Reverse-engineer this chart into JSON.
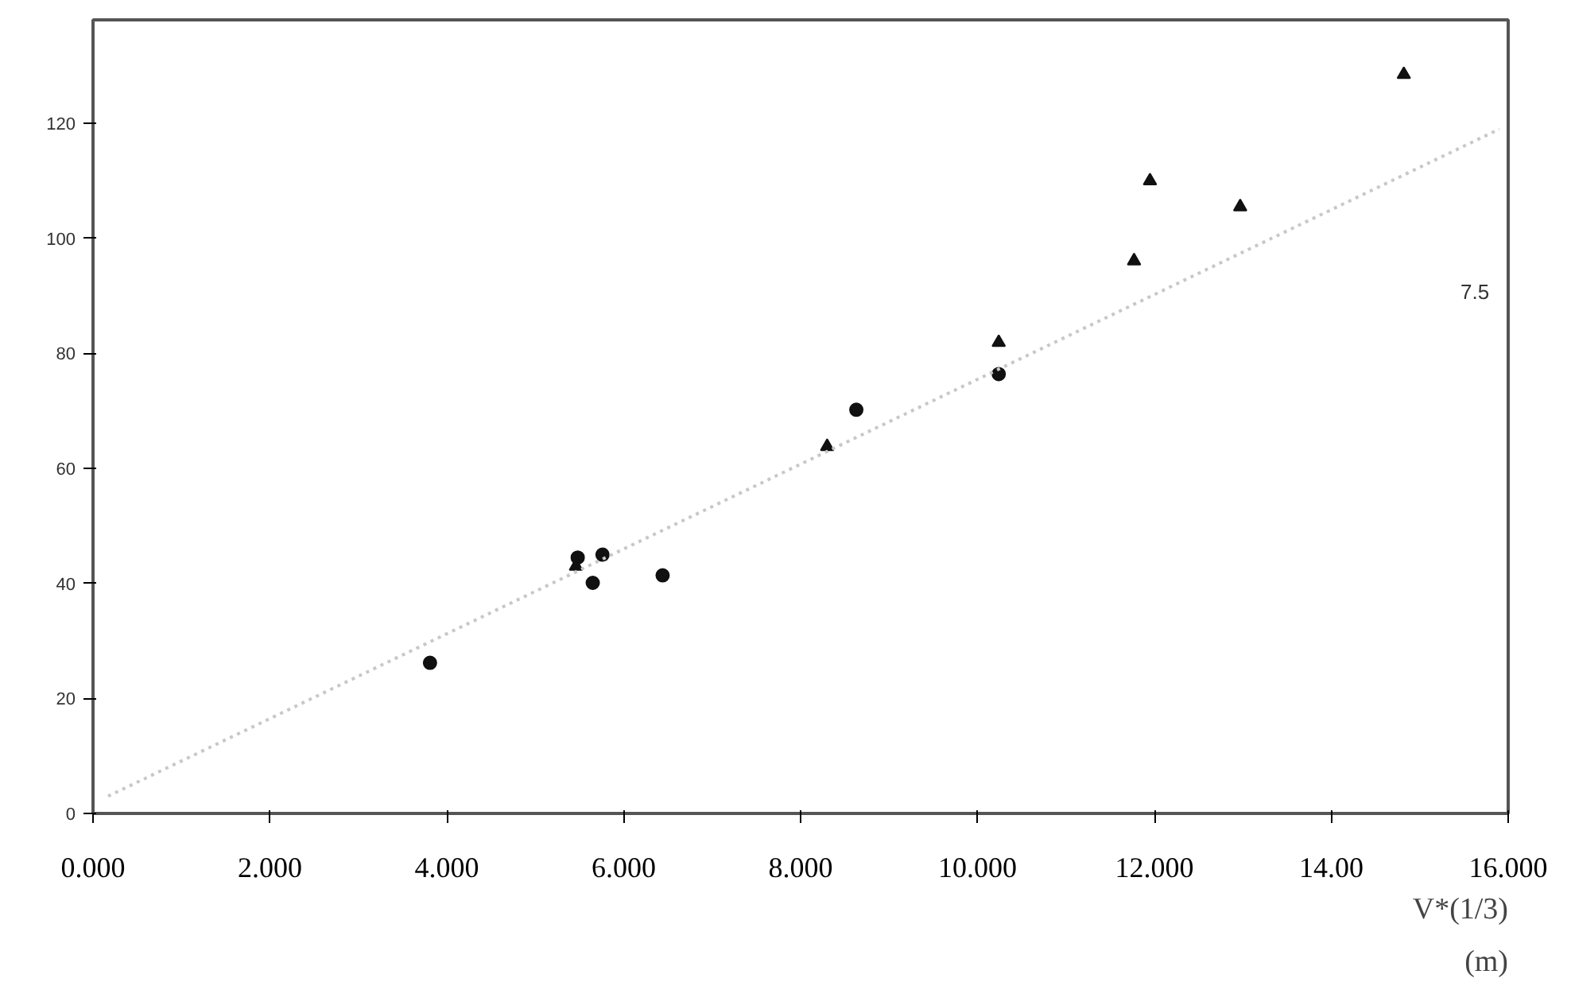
{
  "chart_data": {
    "type": "scatter",
    "xlabel": "V*(1/3) (m)",
    "xlim": [
      0,
      16
    ],
    "ylim": [
      0,
      138
    ],
    "xticks": [
      {
        "value": 0,
        "label": "0.000"
      },
      {
        "value": 2,
        "label": "2.000"
      },
      {
        "value": 4,
        "label": "4.000"
      },
      {
        "value": 6,
        "label": "6.000"
      },
      {
        "value": 8,
        "label": "8.000"
      },
      {
        "value": 10,
        "label": "10.000"
      },
      {
        "value": 12,
        "label": "12.000"
      },
      {
        "value": 14,
        "label": "14.00"
      },
      {
        "value": 16,
        "label": "16.000"
      }
    ],
    "yticks": [
      0,
      20,
      40,
      60,
      80,
      100,
      120
    ],
    "grid": false,
    "series": [
      {
        "marker": "circle",
        "color": "#111111",
        "x": [
          3.81,
          5.48,
          5.65,
          5.76,
          6.44,
          8.63,
          10.24
        ],
        "values": [
          26.2,
          44.5,
          40.1,
          45,
          41.4,
          70.2,
          76.4
        ]
      },
      {
        "marker": "triangle",
        "color": "#111111",
        "x": [
          5.46,
          8.3,
          10.24,
          11.77,
          11.95,
          12.97,
          14.82
        ],
        "values": [
          43,
          63.8,
          81.9,
          96.1,
          110,
          105.5,
          128.5
        ]
      },
      {
        "type": "line",
        "line_style": "dotted",
        "color": "#c8c8c8",
        "x": [
          0.17,
          15.9
        ],
        "values": [
          3,
          119
        ]
      }
    ],
    "annotations": [
      "7.5"
    ]
  }
}
